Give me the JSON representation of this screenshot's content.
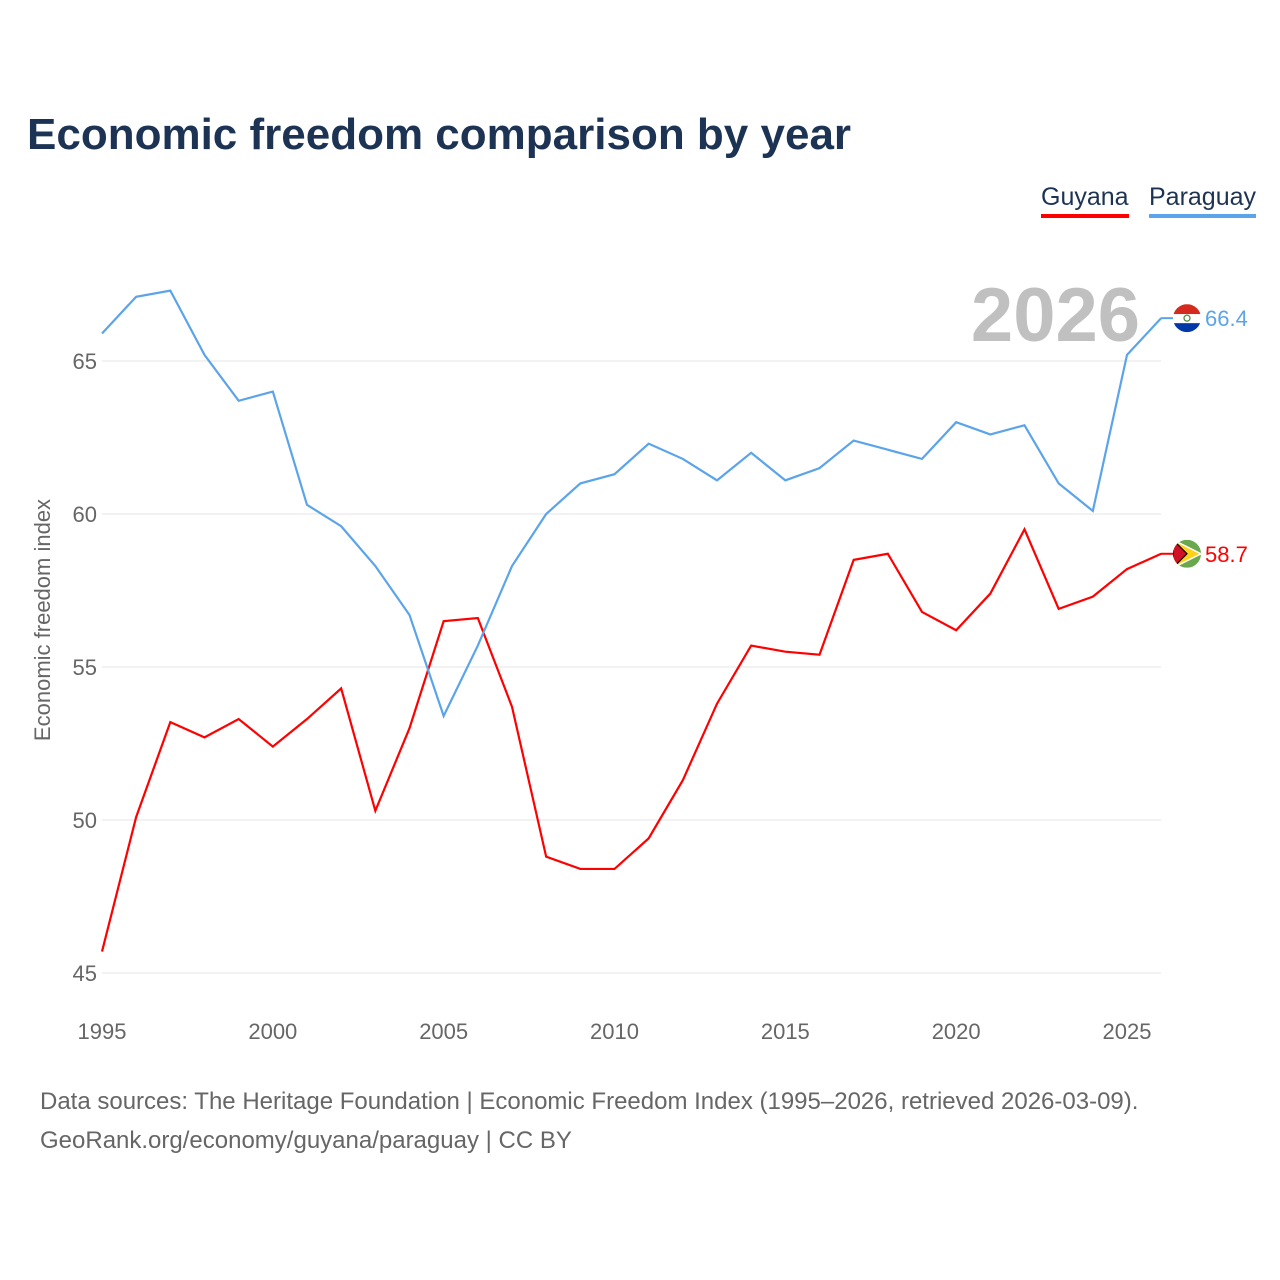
{
  "title": "Economic freedom comparison by year",
  "year_label": "2026",
  "footer": {
    "line1": "Data sources: The Heritage Foundation | Economic Freedom Index (1995–2026, retrieved 2026-03-09).",
    "line2": "GeoRank.org/economy/guyana/paraguay | CC BY"
  },
  "chart_data": {
    "type": "line",
    "title": "Economic freedom comparison by year",
    "xlabel": "",
    "ylabel": "Economic freedom index",
    "ylim": [
      45,
      68.3
    ],
    "xlim": [
      1995,
      2026
    ],
    "grid": true,
    "legend_placement": "top-right",
    "xticks": [
      "1995",
      "2000",
      "2005",
      "2010",
      "2015",
      "2020",
      "2025"
    ],
    "yticks": [
      "45",
      "50",
      "55",
      "60",
      "65"
    ],
    "x": [
      1995,
      1996,
      1997,
      1998,
      1999,
      2000,
      2001,
      2002,
      2003,
      2004,
      2005,
      2006,
      2007,
      2008,
      2009,
      2010,
      2011,
      2012,
      2013,
      2014,
      2015,
      2016,
      2017,
      2018,
      2019,
      2020,
      2021,
      2022,
      2023,
      2024,
      2025,
      2026
    ],
    "series": [
      {
        "name": "Guyana",
        "color": "#ff0000",
        "end_label": "58.7",
        "values": [
          45.7,
          50.1,
          53.2,
          52.7,
          53.3,
          52.4,
          53.3,
          54.3,
          50.3,
          53.0,
          56.5,
          56.6,
          53.7,
          48.8,
          48.4,
          48.4,
          49.4,
          51.3,
          53.8,
          55.7,
          55.5,
          55.4,
          58.5,
          58.7,
          56.8,
          56.2,
          57.4,
          59.5,
          56.9,
          57.3,
          58.2,
          58.7
        ]
      },
      {
        "name": "Paraguay",
        "color": "#5ca4ea",
        "end_label": "66.4",
        "values": [
          65.9,
          67.1,
          67.3,
          65.2,
          63.7,
          64.0,
          60.3,
          59.6,
          58.3,
          56.7,
          53.4,
          55.7,
          58.3,
          60.0,
          61.0,
          61.3,
          62.3,
          61.8,
          61.1,
          62.0,
          61.1,
          61.5,
          62.4,
          62.1,
          61.8,
          63.0,
          62.6,
          62.9,
          61.0,
          60.1,
          65.2,
          66.4
        ]
      }
    ]
  }
}
